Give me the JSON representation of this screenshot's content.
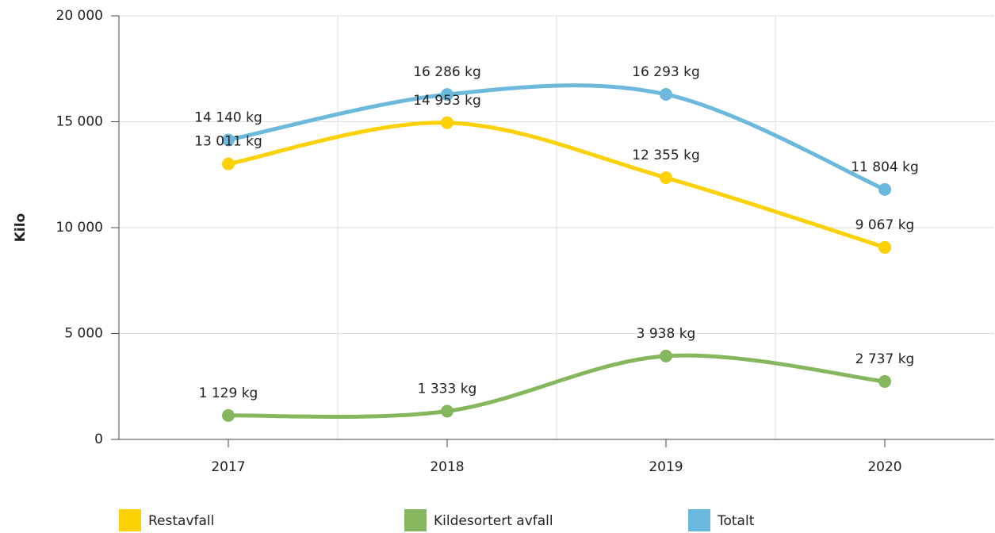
{
  "chart_data": {
    "type": "line",
    "y_label": "Kilo",
    "categories": [
      "2017",
      "2018",
      "2019",
      "2020"
    ],
    "series": [
      {
        "name": "Restavfall",
        "color": "#fcd105",
        "values": [
          13011,
          14953,
          12355,
          9067
        ],
        "value_labels": [
          "13 011 kg",
          "14 953 kg",
          "12 355 kg",
          "9 067 kg"
        ]
      },
      {
        "name": "Kildesortert avfall",
        "color": "#86b75e",
        "values": [
          1129,
          1333,
          3938,
          2737
        ],
        "value_labels": [
          "1 129 kg",
          "1 333 kg",
          "3 938 kg",
          "2 737 kg"
        ]
      },
      {
        "name": "Totalt",
        "color": "#6cb9dd",
        "values": [
          14140,
          16286,
          16293,
          11804
        ],
        "value_labels": [
          "14 140 kg",
          "16 286 kg",
          "16 293 kg",
          "11 804 kg"
        ]
      }
    ],
    "ylim": [
      0,
      20000
    ],
    "yticks": [
      0,
      {
        "value": 5000,
        "label": "5 000"
      },
      {
        "value": 10000,
        "label": "10 000"
      },
      {
        "value": 15000,
        "label": "15 000"
      },
      {
        "value": 20000,
        "label": "20 000"
      }
    ],
    "grid": true,
    "legend": "bottom"
  }
}
